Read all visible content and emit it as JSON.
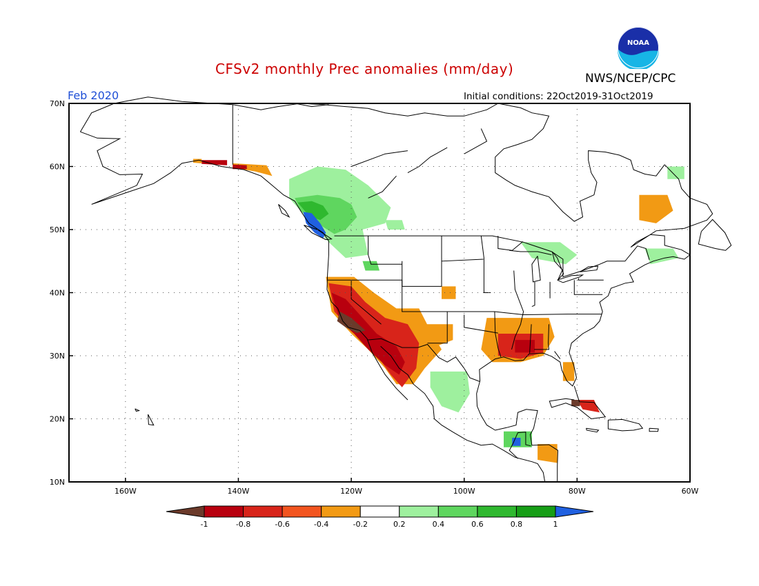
{
  "header": {
    "title": "CFSv2 monthly Prec anomalies (mm/day)",
    "agency": "NWS/NCEP/CPC",
    "valid_month": "Feb 2020",
    "initial_conditions": "Initial conditions: 22Oct2019-31Oct2019",
    "logo_text": "NOAA"
  },
  "colors": {
    "title": "#cc0000",
    "month": "#1f4fd6",
    "text": "#000000"
  },
  "map": {
    "lon_range": [
      -170,
      -60
    ],
    "lat_range": [
      10,
      70
    ],
    "lat_ticks": [
      {
        "value": 70,
        "label": "70N"
      },
      {
        "value": 60,
        "label": "60N"
      },
      {
        "value": 50,
        "label": "50N"
      },
      {
        "value": 40,
        "label": "40N"
      },
      {
        "value": 30,
        "label": "30N"
      },
      {
        "value": 20,
        "label": "20N"
      },
      {
        "value": 10,
        "label": "10N"
      }
    ],
    "lon_ticks": [
      {
        "value": -160,
        "label": "160W"
      },
      {
        "value": -140,
        "label": "140W"
      },
      {
        "value": -120,
        "label": "120W"
      },
      {
        "value": -100,
        "label": "100W"
      },
      {
        "value": -80,
        "label": "80W"
      },
      {
        "value": -60,
        "label": "60W"
      }
    ],
    "grid": "dotted"
  },
  "colorbar": {
    "labels": [
      "-1",
      "-0.8",
      "-0.6",
      "-0.4",
      "-0.2",
      "0.2",
      "0.4",
      "0.6",
      "0.8",
      "1"
    ],
    "colors": [
      "#6b3a2a",
      "#b8000e",
      "#d8241a",
      "#f2541f",
      "#f29a14",
      "#ffffff",
      "#9ef09e",
      "#5fd65f",
      "#2fb82f",
      "#169e16",
      "#2060e0"
    ]
  },
  "anomaly_patches": [
    {
      "name": "alaska-south-coast-dry",
      "color": "#b8000e",
      "points": [
        [
          -146.5,
          61
        ],
        [
          -142,
          61
        ],
        [
          -142,
          60.2
        ],
        [
          -146.5,
          60.4
        ]
      ]
    },
    {
      "name": "alaska-coast-orange",
      "color": "#f29a14",
      "points": [
        [
          -148,
          61.2
        ],
        [
          -146.5,
          61.2
        ],
        [
          -146.5,
          60.5
        ],
        [
          -148,
          60.6
        ]
      ]
    },
    {
      "name": "panhandle-dry",
      "color": "#f29a14",
      "points": [
        [
          -141,
          60.5
        ],
        [
          -135,
          60.2
        ],
        [
          -134,
          58.5
        ],
        [
          -137,
          59.2
        ],
        [
          -141,
          59.8
        ]
      ]
    },
    {
      "name": "panhandle-red",
      "color": "#b8000e",
      "points": [
        [
          -141,
          60.3
        ],
        [
          -138.5,
          60.2
        ],
        [
          -138.5,
          59.6
        ],
        [
          -141,
          59.6
        ]
      ]
    },
    {
      "name": "bc-wet-light",
      "color": "#9ef09e",
      "points": [
        [
          -131,
          58
        ],
        [
          -126,
          60
        ],
        [
          -121,
          59.5
        ],
        [
          -117,
          57
        ],
        [
          -113,
          53.5
        ],
        [
          -114,
          51
        ],
        [
          -118,
          50
        ],
        [
          -117,
          46
        ],
        [
          -121,
          45.5
        ],
        [
          -124,
          48
        ],
        [
          -128,
          52
        ],
        [
          -131,
          55
        ]
      ]
    },
    {
      "name": "bc-wet-medium",
      "color": "#5fd65f",
      "points": [
        [
          -130,
          55
        ],
        [
          -126,
          55.5
        ],
        [
          -122,
          55
        ],
        [
          -120,
          54
        ],
        [
          -119,
          52
        ],
        [
          -121,
          50
        ],
        [
          -123,
          49.3
        ],
        [
          -126,
          51
        ],
        [
          -129,
          53
        ]
      ]
    },
    {
      "name": "bc-wet-dark",
      "color": "#2fb82f",
      "points": [
        [
          -129.5,
          54.3
        ],
        [
          -127,
          54.5
        ],
        [
          -125,
          53.8
        ],
        [
          -124,
          52.5
        ],
        [
          -125.5,
          51.5
        ],
        [
          -127.5,
          52.2
        ]
      ]
    },
    {
      "name": "vancouver-island-very-wet",
      "color": "#2060e0",
      "points": [
        [
          -128.5,
          52.8
        ],
        [
          -127,
          52.6
        ],
        [
          -125.5,
          51
        ],
        [
          -124.5,
          49.5
        ],
        [
          -125,
          48.6
        ],
        [
          -126.5,
          49.5
        ],
        [
          -128,
          51
        ]
      ]
    },
    {
      "name": "montana-wet",
      "color": "#5fd65f",
      "points": [
        [
          -118,
          45
        ],
        [
          -115.5,
          45
        ],
        [
          -115,
          43.5
        ],
        [
          -117.5,
          43.5
        ]
      ]
    },
    {
      "name": "alberta-wet",
      "color": "#9ef09e",
      "points": [
        [
          -114,
          51.5
        ],
        [
          -111,
          51.5
        ],
        [
          -110.5,
          50
        ],
        [
          -113.5,
          50
        ]
      ]
    },
    {
      "name": "great-lakes-wet",
      "color": "#9ef09e",
      "points": [
        [
          -90,
          48
        ],
        [
          -83,
          48
        ],
        [
          -80,
          46
        ],
        [
          -82,
          44.5
        ],
        [
          -88,
          45.5
        ]
      ]
    },
    {
      "name": "labrador-dry",
      "color": "#f29a14",
      "points": [
        [
          -69,
          55.5
        ],
        [
          -64,
          55.5
        ],
        [
          -63,
          53
        ],
        [
          -66,
          51
        ],
        [
          -69,
          51.5
        ]
      ]
    },
    {
      "name": "newfoundland-wet",
      "color": "#9ef09e",
      "points": [
        [
          -68,
          47
        ],
        [
          -63,
          47
        ],
        [
          -62,
          45.5
        ],
        [
          -67,
          44.5
        ]
      ]
    },
    {
      "name": "quebec-wet",
      "color": "#9ef09e",
      "points": [
        [
          -64,
          60
        ],
        [
          -61,
          60
        ],
        [
          -61,
          58
        ],
        [
          -64,
          58
        ]
      ]
    },
    {
      "name": "california-dry-orange",
      "color": "#f29a14",
      "points": [
        [
          -124.5,
          42.5
        ],
        [
          -119.5,
          42.5
        ],
        [
          -116,
          40
        ],
        [
          -112,
          37.5
        ],
        [
          -108,
          37.5
        ],
        [
          -106,
          34
        ],
        [
          -104,
          31
        ],
        [
          -107,
          28
        ],
        [
          -109,
          25.5
        ],
        [
          -112,
          25.5
        ],
        [
          -114,
          28
        ],
        [
          -117,
          31
        ],
        [
          -120,
          33.5
        ],
        [
          -123.5,
          37
        ]
      ]
    },
    {
      "name": "southwest-dry-red",
      "color": "#d8241a",
      "points": [
        [
          -124,
          41.5
        ],
        [
          -120,
          41
        ],
        [
          -117.5,
          38.5
        ],
        [
          -114,
          36
        ],
        [
          -110,
          35
        ],
        [
          -108,
          32
        ],
        [
          -108.5,
          28
        ],
        [
          -111,
          25
        ],
        [
          -113,
          27
        ],
        [
          -115,
          29.5
        ],
        [
          -117.5,
          32
        ],
        [
          -120.5,
          34.5
        ],
        [
          -123,
          37
        ]
      ]
    },
    {
      "name": "southwest-very-dry",
      "color": "#b8000e",
      "points": [
        [
          -123.5,
          40
        ],
        [
          -121,
          39
        ],
        [
          -118.5,
          36.5
        ],
        [
          -115.5,
          33.5
        ],
        [
          -112,
          31.5
        ],
        [
          -110.5,
          29
        ],
        [
          -111.5,
          27
        ],
        [
          -114,
          28.5
        ],
        [
          -117,
          31
        ],
        [
          -119.5,
          33.5
        ],
        [
          -122,
          35.5
        ]
      ]
    },
    {
      "name": "socal-extreme-dry",
      "color": "#6b3a2a",
      "points": [
        [
          -122,
          37
        ],
        [
          -120,
          36
        ],
        [
          -117.5,
          34
        ],
        [
          -119,
          33.6
        ],
        [
          -121,
          34.5
        ],
        [
          -122.5,
          35.5
        ]
      ]
    },
    {
      "name": "colorado-dry",
      "color": "#f29a14",
      "points": [
        [
          -108,
          35
        ],
        [
          -102,
          35
        ],
        [
          -102,
          32.5
        ],
        [
          -105,
          31.5
        ],
        [
          -108,
          32
        ]
      ]
    },
    {
      "name": "kansas-dry",
      "color": "#f29a14",
      "points": [
        [
          -104,
          41
        ],
        [
          -101.5,
          41
        ],
        [
          -101.5,
          39
        ],
        [
          -104,
          39
        ]
      ]
    },
    {
      "name": "mexico-plateau-wet",
      "color": "#9ef09e",
      "points": [
        [
          -106,
          27.5
        ],
        [
          -99.5,
          27.5
        ],
        [
          -99,
          24
        ],
        [
          -101,
          21
        ],
        [
          -104,
          22
        ],
        [
          -106,
          25
        ]
      ]
    },
    {
      "name": "yucatan-wet",
      "color": "#5fd65f",
      "points": [
        [
          -93,
          18
        ],
        [
          -88,
          18
        ],
        [
          -88,
          15.5
        ],
        [
          -93,
          15.5
        ]
      ]
    },
    {
      "name": "yucatan-very-wet",
      "color": "#2060e0",
      "points": [
        [
          -91.5,
          17
        ],
        [
          -90,
          17
        ],
        [
          -90,
          15.7
        ],
        [
          -91.5,
          15.7
        ]
      ]
    },
    {
      "name": "southeast-dry-orange",
      "color": "#f29a14",
      "points": [
        [
          -96,
          36
        ],
        [
          -85,
          36
        ],
        [
          -84,
          33
        ],
        [
          -86,
          30
        ],
        [
          -90,
          29
        ],
        [
          -95,
          29
        ],
        [
          -97,
          31
        ]
      ]
    },
    {
      "name": "gulf-coast-dry-red",
      "color": "#d8241a",
      "points": [
        [
          -94,
          33.5
        ],
        [
          -86,
          33.5
        ],
        [
          -86,
          30.5
        ],
        [
          -90,
          29.5
        ],
        [
          -94,
          30
        ]
      ]
    },
    {
      "name": "mississippi-very-dry",
      "color": "#b8000e",
      "points": [
        [
          -91,
          32.5
        ],
        [
          -87.5,
          32.5
        ],
        [
          -87.5,
          30.5
        ],
        [
          -91,
          30.5
        ]
      ]
    },
    {
      "name": "florida-dry",
      "color": "#f29a14",
      "points": [
        [
          -82.5,
          29
        ],
        [
          -80.5,
          29
        ],
        [
          -80.5,
          26
        ],
        [
          -82.5,
          26
        ]
      ]
    },
    {
      "name": "cuba-dry",
      "color": "#d8241a",
      "points": [
        [
          -80,
          23
        ],
        [
          -77,
          23
        ],
        [
          -76,
          21
        ],
        [
          -79,
          21.5
        ]
      ]
    },
    {
      "name": "cuba-extreme-dry",
      "color": "#6b3a2a",
      "points": [
        [
          -81,
          23
        ],
        [
          -79.5,
          23
        ],
        [
          -79.5,
          22
        ],
        [
          -81,
          22
        ]
      ]
    },
    {
      "name": "central-america-dry",
      "color": "#f29a14",
      "points": [
        [
          -87,
          16
        ],
        [
          -83.5,
          16
        ],
        [
          -83.5,
          13
        ],
        [
          -87,
          13.5
        ]
      ]
    }
  ]
}
